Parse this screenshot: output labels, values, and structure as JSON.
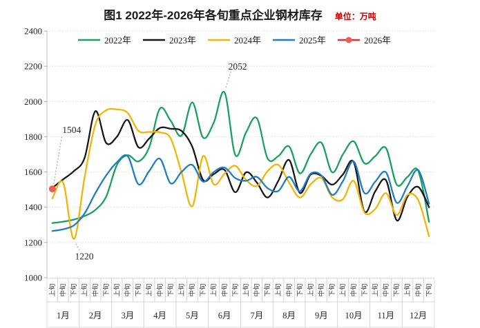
{
  "title": "图1  2022年-2026年各旬重点企业钢材库存",
  "unit_label": "单位：万吨",
  "unit_color": "#c00000",
  "legend": [
    {
      "label": "2022年",
      "color": "#18a15d",
      "marker": false
    },
    {
      "label": "2023年",
      "color": "#161616",
      "marker": false
    },
    {
      "label": "2024年",
      "color": "#f2b505",
      "marker": false
    },
    {
      "label": "2025年",
      "color": "#1e7cc8",
      "marker": false
    },
    {
      "label": "2026年",
      "color": "#e2322e",
      "marker": true,
      "marker_color": "#ef5b57"
    }
  ],
  "chart_data": {
    "type": "line",
    "title": "图1  2022年-2026年各旬重点企业钢材库存",
    "unit": "万吨",
    "ylim": [
      1000,
      2400
    ],
    "ytick_step": 200,
    "grid": "dotted-horizontal",
    "legend_position": "top-inside",
    "x_months": [
      "1月",
      "2月",
      "3月",
      "4月",
      "5月",
      "6月",
      "7月",
      "8月",
      "9月",
      "10月",
      "11月",
      "12月"
    ],
    "x_periods": [
      "上旬",
      "中旬",
      "下旬"
    ],
    "series": [
      {
        "name": "2022年",
        "color": "#18a15d",
        "values": [
          1310,
          1318,
          1330,
          1350,
          1385,
          1460,
          1640,
          1695,
          1660,
          1740,
          1960,
          1890,
          1806,
          1995,
          1795,
          1880,
          2052,
          1696,
          1825,
          1905,
          1676,
          1690,
          1745,
          1592,
          1700,
          1766,
          1598,
          1700,
          1774,
          1649,
          1690,
          1735,
          1528,
          1572,
          1606,
          1317
        ]
      },
      {
        "name": "2023年",
        "color": "#161616",
        "values": [
          1510,
          1558,
          1605,
          1680,
          1945,
          1765,
          1800,
          1895,
          1740,
          1790,
          1850,
          1845,
          1833,
          1743,
          1555,
          1588,
          1612,
          1485,
          1598,
          1540,
          1455,
          1550,
          1668,
          1481,
          1585,
          1578,
          1528,
          1586,
          1657,
          1375,
          1490,
          1553,
          1325,
          1460,
          1515,
          1400
        ]
      },
      {
        "name": "2024年",
        "color": "#f2b505",
        "values": [
          1450,
          1540,
          1220,
          1570,
          1870,
          1950,
          1955,
          1935,
          1833,
          1827,
          1825,
          1790,
          1598,
          1405,
          1690,
          1530,
          1590,
          1635,
          1555,
          1520,
          1605,
          1640,
          1540,
          1455,
          1530,
          1565,
          1455,
          1445,
          1550,
          1370,
          1390,
          1480,
          1355,
          1470,
          1440,
          1235
        ]
      },
      {
        "name": "2025年",
        "color": "#1e7cc8",
        "values": [
          1265,
          1275,
          1297,
          1365,
          1480,
          1580,
          1655,
          1690,
          1530,
          1605,
          1675,
          1535,
          1600,
          1640,
          1545,
          1600,
          1625,
          1565,
          1550,
          1572,
          1508,
          1492,
          1572,
          1490,
          1590,
          1580,
          1470,
          1548,
          1660,
          1480,
          1545,
          1598,
          1425,
          1520,
          1610,
          1420
        ]
      },
      {
        "name": "2026年",
        "color": "#e2322e",
        "marker": true,
        "marker_color": "#ef5b57",
        "values": [
          1504,
          null,
          null,
          null,
          null,
          null,
          null,
          null,
          null,
          null,
          null,
          null,
          null,
          null,
          null,
          null,
          null,
          null,
          null,
          null,
          null,
          null,
          null,
          null,
          null,
          null,
          null,
          null,
          null,
          null,
          null,
          null,
          null,
          null,
          null,
          null
        ]
      }
    ],
    "annotations": [
      {
        "text": "1504",
        "series": "2026年",
        "point": 0,
        "placement": "upper-right"
      },
      {
        "text": "1220",
        "series": "2024年",
        "point": 2,
        "placement": "below"
      },
      {
        "text": "2052",
        "series": "2022年",
        "point": 16,
        "placement": "above"
      }
    ]
  }
}
